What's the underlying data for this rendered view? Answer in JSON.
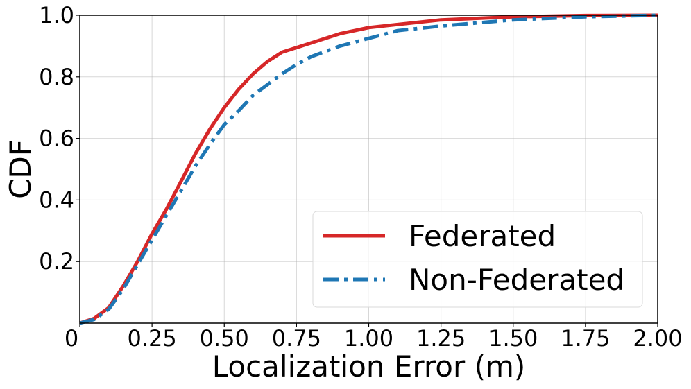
{
  "chart_data": {
    "type": "line",
    "title": "",
    "xlabel": "Localization Error (m)",
    "ylabel": "CDF",
    "xlim": [
      0,
      2.0
    ],
    "ylim": [
      0,
      1.0
    ],
    "grid": true,
    "legend_position": "bottom-right",
    "x_ticks": [
      {
        "value": 0,
        "label": "0"
      },
      {
        "value": 0.25,
        "label": "0.25"
      },
      {
        "value": 0.5,
        "label": "0.50"
      },
      {
        "value": 0.75,
        "label": "0.75"
      },
      {
        "value": 1.0,
        "label": "1.00"
      },
      {
        "value": 1.25,
        "label": "1.25"
      },
      {
        "value": 1.5,
        "label": "1.50"
      },
      {
        "value": 1.75,
        "label": "1.75"
      },
      {
        "value": 2.0,
        "label": "2.00"
      }
    ],
    "y_ticks": [
      {
        "value": 0.2,
        "label": "0.2"
      },
      {
        "value": 0.4,
        "label": "0.4"
      },
      {
        "value": 0.6,
        "label": "0.6"
      },
      {
        "value": 0.8,
        "label": "0.8"
      },
      {
        "value": 1.0,
        "label": "1.0"
      }
    ],
    "series": [
      {
        "name": "Federated",
        "color": "#d62728",
        "line_style": "solid",
        "x": [
          0,
          0.05,
          0.1,
          0.15,
          0.2,
          0.25,
          0.3,
          0.35,
          0.4,
          0.45,
          0.5,
          0.55,
          0.6,
          0.65,
          0.7,
          0.75,
          0.8,
          0.9,
          1.0,
          1.1,
          1.25,
          1.5,
          1.75,
          2.0
        ],
        "y": [
          0,
          0.015,
          0.05,
          0.12,
          0.2,
          0.29,
          0.37,
          0.46,
          0.55,
          0.63,
          0.7,
          0.76,
          0.81,
          0.85,
          0.88,
          0.895,
          0.91,
          0.94,
          0.96,
          0.97,
          0.985,
          0.995,
          0.999,
          1.0
        ]
      },
      {
        "name": "Non-Federated",
        "color": "#1f77b4",
        "line_style": "dash-dot",
        "x": [
          0,
          0.05,
          0.1,
          0.15,
          0.2,
          0.25,
          0.3,
          0.35,
          0.4,
          0.45,
          0.5,
          0.55,
          0.6,
          0.65,
          0.7,
          0.75,
          0.8,
          0.9,
          1.0,
          1.1,
          1.25,
          1.5,
          1.75,
          2.0
        ],
        "y": [
          0,
          0.012,
          0.045,
          0.11,
          0.19,
          0.27,
          0.35,
          0.43,
          0.51,
          0.58,
          0.645,
          0.69,
          0.74,
          0.775,
          0.81,
          0.84,
          0.865,
          0.9,
          0.925,
          0.95,
          0.965,
          0.985,
          0.995,
          1.0
        ]
      }
    ]
  }
}
